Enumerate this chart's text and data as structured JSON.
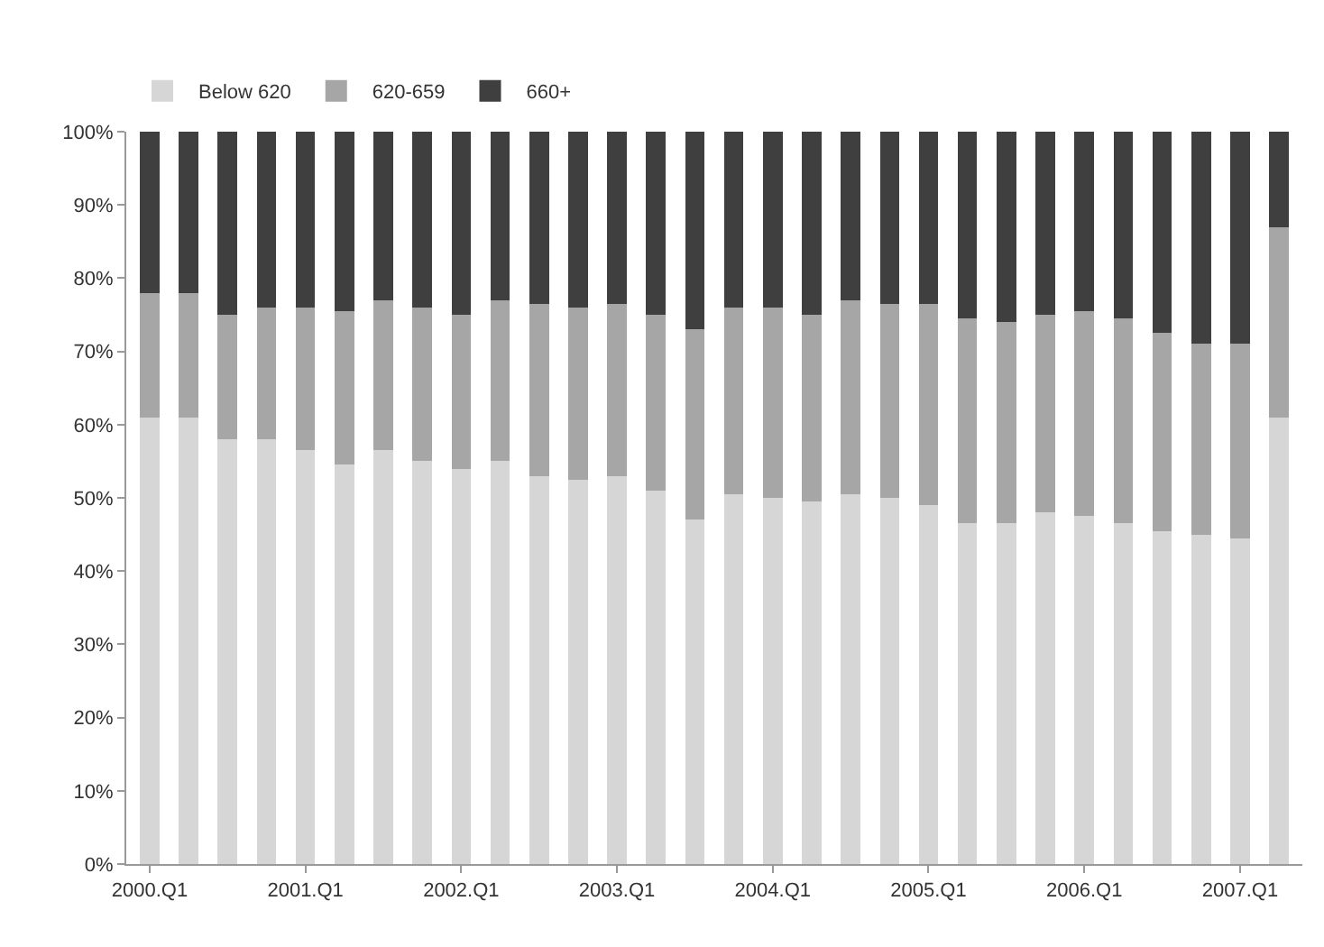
{
  "chart_data": {
    "type": "bar",
    "stacked": true,
    "categories": [
      "2000.Q1",
      null,
      null,
      null,
      "2001.Q1",
      null,
      null,
      null,
      "2002.Q1",
      null,
      null,
      null,
      "2003.Q1",
      null,
      null,
      null,
      "2004.Q1",
      null,
      null,
      null,
      "2005.Q1",
      null,
      null,
      null,
      "2006.Q1",
      null,
      null,
      null,
      "2007.Q1",
      null
    ],
    "series": [
      {
        "name": "Below 620",
        "color": "#d6d6d6",
        "values": [
          61,
          61,
          58,
          58,
          56.5,
          54.5,
          56.5,
          55,
          54,
          55,
          53,
          52.5,
          53,
          51,
          47,
          50.5,
          50,
          49.5,
          50.5,
          50,
          49,
          46.5,
          46.5,
          48,
          47.5,
          46.5,
          45.5,
          45,
          44.5,
          61
        ]
      },
      {
        "name": "620-659",
        "color": "#a6a6a6",
        "values": [
          17,
          17,
          17,
          18,
          19.5,
          21,
          20.5,
          21,
          21,
          22,
          23.5,
          23.5,
          23.5,
          24,
          26,
          25.5,
          26,
          25.5,
          26.5,
          26.5,
          27.5,
          28,
          27.5,
          27,
          28,
          28,
          27,
          26,
          26.5,
          26
        ]
      },
      {
        "name": "660+",
        "color": "#3f3f3f",
        "values": [
          22,
          22,
          25,
          24,
          24,
          24.5,
          23,
          24,
          25,
          23,
          23.5,
          24,
          23.5,
          25,
          27,
          24,
          24,
          25,
          23,
          23.5,
          23.5,
          25.5,
          26,
          25,
          24.5,
          25.5,
          27.5,
          29,
          29,
          13
        ]
      }
    ],
    "ylim": [
      0,
      100
    ],
    "yticks": [
      {
        "value": 0,
        "label": "0%"
      },
      {
        "value": 10,
        "label": "10%"
      },
      {
        "value": 20,
        "label": "20%"
      },
      {
        "value": 30,
        "label": "30%"
      },
      {
        "value": 40,
        "label": "40%"
      },
      {
        "value": 50,
        "label": "50%"
      },
      {
        "value": 60,
        "label": "60%"
      },
      {
        "value": 70,
        "label": "70%"
      },
      {
        "value": 80,
        "label": "80%"
      },
      {
        "value": 90,
        "label": "90%"
      },
      {
        "value": 100,
        "label": "100%"
      }
    ],
    "grid": false,
    "legend": "top left"
  }
}
